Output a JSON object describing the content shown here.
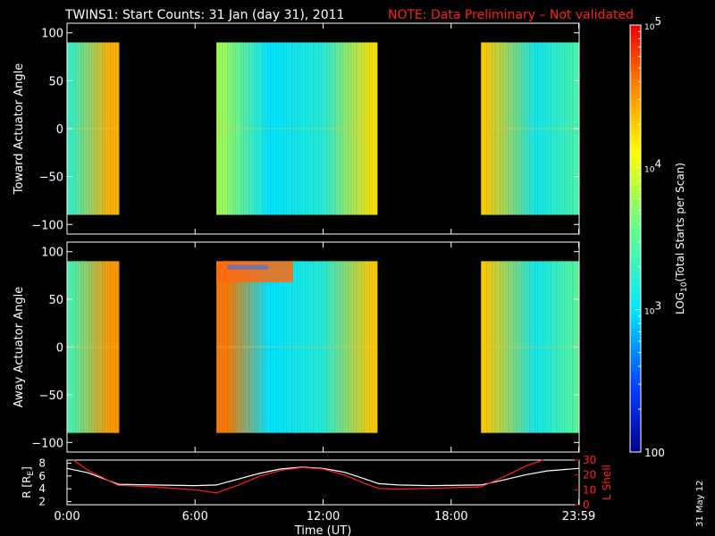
{
  "header": {
    "title": "TWINS1: Start Counts: 31 Jan (day  31), 2011",
    "note": "NOTE: Data Preliminary – Not validated",
    "note_color": "#ff2020"
  },
  "side_label": "31 May 12",
  "chart_data": [
    {
      "type": "heatmap",
      "panel": "toward",
      "ylabel": "Toward Actuator Angle",
      "ylim": [
        -110,
        110
      ],
      "yticks": [
        "100",
        "50",
        "0",
        "−50",
        "−100"
      ],
      "ytick_values": [
        100,
        50,
        0,
        -50,
        -100
      ],
      "angle_range": [
        -90,
        90
      ],
      "xlim_hours": [
        0,
        24
      ],
      "data_intervals_hours": [
        [
          0,
          2.45
        ],
        [
          7.0,
          14.55
        ],
        [
          19.4,
          24
        ]
      ],
      "log10_counts_estimate": [
        {
          "x_hours": 0.2,
          "value": 3.3
        },
        {
          "x_hours": 2.0,
          "value": 4.4
        },
        {
          "x_hours": 7.2,
          "value": 3.8
        },
        {
          "x_hours": 9.5,
          "value": 3.0
        },
        {
          "x_hours": 12.0,
          "value": 3.2
        },
        {
          "x_hours": 14.3,
          "value": 4.2
        },
        {
          "x_hours": 19.6,
          "value": 4.3
        },
        {
          "x_hours": 22.0,
          "value": 3.1
        },
        {
          "x_hours": 23.9,
          "value": 3.4
        }
      ]
    },
    {
      "type": "heatmap",
      "panel": "away",
      "ylabel": "Away Actuator Angle",
      "ylim": [
        -110,
        110
      ],
      "yticks": [
        "100",
        "50",
        "0",
        "−50",
        "−100"
      ],
      "ytick_values": [
        100,
        50,
        0,
        -50,
        -100
      ],
      "angle_range": [
        -90,
        90
      ],
      "xlim_hours": [
        0,
        24
      ],
      "data_intervals_hours": [
        [
          0,
          2.45
        ],
        [
          7.0,
          14.55
        ],
        [
          19.4,
          24
        ]
      ],
      "log10_counts_estimate": [
        {
          "x_hours": 0.2,
          "value": 3.4
        },
        {
          "x_hours": 2.0,
          "value": 4.5
        },
        {
          "x_hours": 7.5,
          "value": 4.6
        },
        {
          "x_hours": 9.5,
          "value": 3.0
        },
        {
          "x_hours": 12.0,
          "value": 3.2
        },
        {
          "x_hours": 14.3,
          "value": 4.3
        },
        {
          "x_hours": 19.6,
          "value": 4.3
        },
        {
          "x_hours": 22.0,
          "value": 3.1
        },
        {
          "x_hours": 23.9,
          "value": 3.5
        }
      ]
    },
    {
      "type": "line",
      "panel": "ephemeris",
      "xlabel": "Time (UT)",
      "xticks": [
        "0:00",
        "6:00",
        "12:00",
        "18:00",
        "23:59"
      ],
      "xtick_values": [
        0,
        6,
        12,
        18,
        23.98
      ],
      "ylabel_left": "R [R",
      "ylabel_left_sub": "E",
      "ylabel_left_close": "]",
      "yticks_left": [
        "8",
        "6",
        "4",
        "2"
      ],
      "ylim_left": [
        1.5,
        8.5
      ],
      "ylabel_right": "L Shell",
      "yticks_right": [
        "30",
        "20",
        "10",
        "0"
      ],
      "ylim_right": [
        0,
        30
      ],
      "series": [
        {
          "color": "#ffffff",
          "axis": "left",
          "x": [
            0,
            1,
            2.4,
            4,
            6,
            7.0,
            8,
            9,
            10,
            11,
            12,
            13,
            14,
            14.6,
            15.5,
            17,
            19.4,
            20.5,
            21.5,
            22.5,
            24
          ],
          "y": [
            7.2,
            6.5,
            4.7,
            4.6,
            4.5,
            4.6,
            5.5,
            6.4,
            7.1,
            7.4,
            7.2,
            6.6,
            5.5,
            4.8,
            4.6,
            4.5,
            4.6,
            5.4,
            6.2,
            6.8,
            7.2
          ]
        },
        {
          "color": "#ff2020",
          "axis": "right",
          "x": [
            0.3,
            1.0,
            2.4,
            4,
            6,
            7.0,
            8,
            9,
            10,
            11,
            12,
            13,
            14,
            14.6,
            15.5,
            17,
            19.4,
            20.5,
            21.5,
            22.3
          ],
          "y": [
            30,
            23,
            13,
            12,
            10,
            8,
            13,
            19,
            23,
            25,
            24,
            20,
            14,
            11,
            10.5,
            11,
            12,
            19,
            26,
            30
          ]
        }
      ]
    },
    {
      "type": "colorbar",
      "label": "LOG",
      "label_sub": "10",
      "label_rest": "(Total Starts per Scan)",
      "scale": "log",
      "range": [
        100,
        100000
      ],
      "ticks": [
        {
          "value": 100000,
          "base": "10",
          "exp": "5"
        },
        {
          "value": 10000,
          "base": "10",
          "exp": "4"
        },
        {
          "value": 1000,
          "base": "10",
          "exp": "3"
        },
        {
          "value": 100,
          "label": "100"
        }
      ]
    }
  ]
}
